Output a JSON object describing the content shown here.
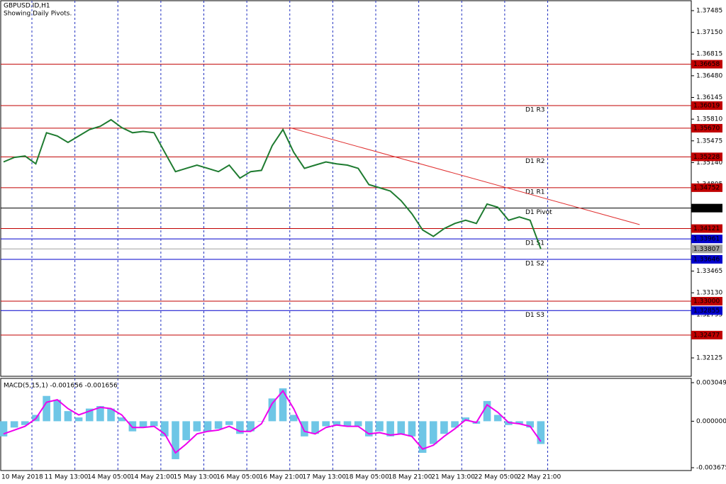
{
  "chart_data": [
    {
      "type": "line",
      "title": "GBPUSD.ID,H1",
      "subtitle": "Showing Daily Pivots.",
      "categories": [
        "10 May 2018",
        null,
        null,
        null,
        "11 May 13:00",
        null,
        null,
        null,
        "14 May 05:00",
        null,
        null,
        null,
        "14 May 21:00",
        null,
        null,
        null,
        "15 May 13:00",
        null,
        null,
        null,
        "16 May 05:00",
        null,
        null,
        null,
        "16 May 21:00",
        null,
        null,
        null,
        "17 May 13:00",
        null,
        null,
        null,
        "18 May 05:00",
        null,
        null,
        null,
        "18 May 21:00",
        null,
        null,
        null,
        "21 May 13:00",
        null,
        null,
        null,
        "22 May 05:00",
        null,
        null,
        null,
        "22 May 21:00",
        null,
        null,
        null,
        null,
        null,
        null,
        null,
        null,
        null,
        null,
        null,
        null,
        null,
        null,
        null
      ],
      "values": [
        1.3515,
        1.3522,
        1.3524,
        1.3512,
        1.356,
        1.3555,
        1.3545,
        1.3555,
        1.3565,
        1.357,
        1.358,
        1.3568,
        1.356,
        1.3562,
        1.356,
        1.353,
        1.35,
        1.3505,
        1.351,
        1.3505,
        1.35,
        1.351,
        1.349,
        1.35,
        1.3502,
        1.354,
        1.3565,
        1.353,
        1.3505,
        1.351,
        1.3515,
        1.3512,
        1.351,
        1.3505,
        1.348,
        1.3475,
        1.347,
        1.3455,
        1.3435,
        1.341,
        1.34,
        1.3412,
        1.342,
        1.3425,
        1.342,
        1.345,
        1.3445,
        1.3425,
        1.343,
        1.3425,
        1.33807,
        null,
        null,
        null,
        null,
        null,
        null,
        null,
        null,
        null,
        null,
        null,
        null,
        null
      ],
      "color": "#1e7b30",
      "ylim": [
        1.31852,
        1.37649
      ],
      "yticks": [
        1.37485,
        {
          "value": 1.3715,
          "label": "1.37150"
        },
        1.36815,
        {
          "value": 1.3648,
          "label": "1.36480"
        },
        1.36145,
        {
          "value": 1.3581,
          "label": "1.35810"
        },
        1.35475,
        {
          "value": 1.3514,
          "label": "1.35140"
        },
        1.34805,
        1.34135,
        {
          "value": 1.338,
          "label": "1.33800"
        },
        1.33465,
        {
          "value": 1.3313,
          "label": "1.33130"
        },
        1.32795,
        {
          "value": 1.3246,
          "label": "1.32460"
        },
        1.32125
      ],
      "levels": [
        {
          "value": 1.36658,
          "color": "#c00000"
        },
        {
          "value": 1.36019,
          "color": "#c00000",
          "name": "D1 R3"
        },
        {
          "value": 1.3567,
          "label": "1.35670",
          "color": "#c00000"
        },
        {
          "value": 1.35228,
          "color": "#c00000",
          "name": "D1 R2"
        },
        {
          "value": 1.34752,
          "color": "#c00000",
          "name": "D1 R1"
        },
        {
          "value": 1.34437,
          "color": "#000000",
          "name": "D1 Pivot"
        },
        {
          "value": 1.34121,
          "color": "#c00000"
        },
        {
          "value": 1.33961,
          "color": "#0000cc",
          "name": "D1 S1"
        },
        {
          "value": 1.33807,
          "color": "#a0a0a0"
        },
        {
          "value": 1.33646,
          "color": "#0000cc",
          "name": "D1 S2"
        },
        {
          "value": 1.33,
          "label": "1.33000",
          "color": "#c00000"
        },
        {
          "value": 1.32855,
          "color": "#0000cc",
          "name": "D1 S3"
        },
        {
          "value": 1.32477,
          "color": "#c00000"
        }
      ],
      "trendline": {
        "x": [
          26.6,
          59.2
        ],
        "y": [
          1.3568,
          1.34182
        ],
        "color": "#e03030"
      }
    },
    {
      "type": "bar",
      "title": "MACD(5,15,1) -0.001656 -0.001656",
      "values": [
        -0.0012,
        -0.0005,
        -0.0003,
        0.0005,
        0.002,
        0.0017,
        0.0008,
        0.0003,
        0.001,
        0.0012,
        0.001,
        0.0003,
        -0.0008,
        -0.0005,
        -0.0004,
        -0.0012,
        -0.003,
        -0.0015,
        -0.0008,
        -0.0008,
        -0.0006,
        -0.0003,
        -0.001,
        -0.0008,
        0.0,
        0.0018,
        0.0026,
        0.0005,
        -0.0012,
        -0.001,
        -0.0004,
        -0.0003,
        -0.0004,
        -0.0004,
        -0.0012,
        -0.0008,
        -0.0012,
        -0.001,
        -0.0012,
        -0.0025,
        -0.0018,
        -0.001,
        -0.0005,
        0.0003,
        -0.0002,
        0.0016,
        0.0005,
        -0.0003,
        -0.0002,
        -0.0005,
        -0.0018,
        null,
        null,
        null,
        null,
        null,
        null,
        null,
        null,
        null,
        null,
        null,
        null,
        null
      ],
      "color": "#6ec6e6",
      "line_values": [
        -0.001,
        -0.0007,
        -0.0004,
        0.0002,
        0.0015,
        0.0017,
        0.001,
        0.0005,
        0.0008,
        0.0011,
        0.001,
        0.0005,
        -0.0005,
        -0.0005,
        -0.0004,
        -0.001,
        -0.0025,
        -0.0018,
        -0.001,
        -0.0008,
        -0.0007,
        -0.0004,
        -0.0008,
        -0.0008,
        -0.0002,
        0.0014,
        0.0024,
        0.001,
        -0.0008,
        -0.001,
        -0.0005,
        -0.0003,
        -0.0004,
        -0.0004,
        -0.001,
        -0.0009,
        -0.0011,
        -0.001,
        -0.0012,
        -0.0022,
        -0.0019,
        -0.0012,
        -0.0006,
        0.0001,
        -0.0001,
        0.0013,
        0.0007,
        -0.0001,
        -0.0002,
        -0.0004,
        -0.0016,
        null,
        null,
        null,
        null,
        null,
        null,
        null,
        null,
        null,
        null,
        null,
        null,
        null
      ],
      "line_color": "#ee00ee",
      "ylim": [
        -0.003675,
        0.003049
      ],
      "yticks": [
        0.003049,
        {
          "value": 0,
          "label": "0.000000"
        },
        -0.003675
      ]
    }
  ]
}
